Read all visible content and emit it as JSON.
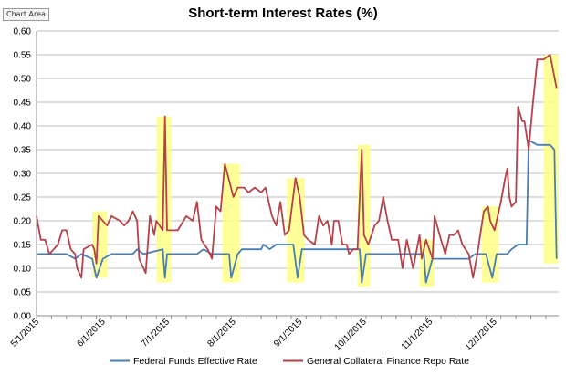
{
  "chart_area_label": "Chart Area",
  "chart_data": {
    "type": "line",
    "title": "Short-term Interest Rates (%)",
    "xlabel": "",
    "ylabel": "",
    "ylim": [
      0,
      0.6
    ],
    "y_ticks": [
      "0.00",
      "0.05",
      "0.10",
      "0.15",
      "0.20",
      "0.25",
      "0.30",
      "0.35",
      "0.40",
      "0.45",
      "0.50",
      "0.55",
      "0.60"
    ],
    "x_ticks": [
      "5/1/2015",
      "6/1/2015",
      "7/1/2015",
      "8/1/2015",
      "9/1/2015",
      "10/1/2015",
      "11/1/2015",
      "12/1/2015"
    ],
    "x_start": "2015-05-01",
    "x_end": "2015-12-31",
    "grid": true,
    "legend_position": "bottom",
    "highlight_color": "#ffff88",
    "highlights": [
      {
        "start": "2015-05-27",
        "end": "2015-06-03",
        "low": 0.08,
        "high": 0.22
      },
      {
        "start": "2015-06-26",
        "end": "2015-07-03",
        "low": 0.07,
        "high": 0.42
      },
      {
        "start": "2015-07-27",
        "end": "2015-08-04",
        "low": 0.07,
        "high": 0.32
      },
      {
        "start": "2015-08-26",
        "end": "2015-09-03",
        "low": 0.07,
        "high": 0.29
      },
      {
        "start": "2015-09-28",
        "end": "2015-10-04",
        "low": 0.06,
        "high": 0.36
      },
      {
        "start": "2015-10-27",
        "end": "2015-11-03",
        "low": 0.06,
        "high": 0.16
      },
      {
        "start": "2015-11-25",
        "end": "2015-12-03",
        "low": 0.07,
        "high": 0.23
      },
      {
        "start": "2015-12-24",
        "end": "2015-12-31",
        "low": 0.11,
        "high": 0.55
      }
    ],
    "series": [
      {
        "name": "Federal Funds Effective Rate",
        "color": "#4a7eb3",
        "points": [
          [
            "2015-05-01",
            0.13
          ],
          [
            "2015-05-15",
            0.13
          ],
          [
            "2015-05-19",
            0.12
          ],
          [
            "2015-05-22",
            0.13
          ],
          [
            "2015-05-27",
            0.12
          ],
          [
            "2015-05-29",
            0.08
          ],
          [
            "2015-06-01",
            0.12
          ],
          [
            "2015-06-05",
            0.13
          ],
          [
            "2015-06-15",
            0.13
          ],
          [
            "2015-06-17",
            0.14
          ],
          [
            "2015-06-20",
            0.13
          ],
          [
            "2015-06-29",
            0.14
          ],
          [
            "2015-06-30",
            0.08
          ],
          [
            "2015-07-01",
            0.13
          ],
          [
            "2015-07-15",
            0.13
          ],
          [
            "2015-07-18",
            0.14
          ],
          [
            "2015-07-22",
            0.13
          ],
          [
            "2015-07-30",
            0.13
          ],
          [
            "2015-07-31",
            0.08
          ],
          [
            "2015-08-03",
            0.13
          ],
          [
            "2015-08-05",
            0.14
          ],
          [
            "2015-08-14",
            0.14
          ],
          [
            "2015-08-15",
            0.15
          ],
          [
            "2015-08-18",
            0.14
          ],
          [
            "2015-08-21",
            0.15
          ],
          [
            "2015-08-29",
            0.15
          ],
          [
            "2015-08-31",
            0.08
          ],
          [
            "2015-09-02",
            0.14
          ],
          [
            "2015-09-15",
            0.14
          ],
          [
            "2015-09-29",
            0.14
          ],
          [
            "2015-09-30",
            0.07
          ],
          [
            "2015-10-02",
            0.13
          ],
          [
            "2015-10-15",
            0.13
          ],
          [
            "2015-10-29",
            0.13
          ],
          [
            "2015-10-30",
            0.07
          ],
          [
            "2015-11-02",
            0.12
          ],
          [
            "2015-11-16",
            0.12
          ],
          [
            "2015-11-19",
            0.12
          ],
          [
            "2015-11-22",
            0.13
          ],
          [
            "2015-11-27",
            0.13
          ],
          [
            "2015-11-30",
            0.08
          ],
          [
            "2015-12-02",
            0.13
          ],
          [
            "2015-12-07",
            0.13
          ],
          [
            "2015-12-09",
            0.14
          ],
          [
            "2015-12-12",
            0.15
          ],
          [
            "2015-12-14",
            0.15
          ],
          [
            "2015-12-16",
            0.15
          ],
          [
            "2015-12-17",
            0.37
          ],
          [
            "2015-12-21",
            0.36
          ],
          [
            "2015-12-23",
            0.36
          ],
          [
            "2015-12-27",
            0.36
          ],
          [
            "2015-12-29",
            0.35
          ],
          [
            "2015-12-30",
            0.12
          ]
        ]
      },
      {
        "name": "General Collateral Finance Repo Rate",
        "color": "#b5424a",
        "points": [
          [
            "2015-05-01",
            0.21
          ],
          [
            "2015-05-03",
            0.16
          ],
          [
            "2015-05-05",
            0.16
          ],
          [
            "2015-05-07",
            0.13
          ],
          [
            "2015-05-09",
            0.14
          ],
          [
            "2015-05-11",
            0.15
          ],
          [
            "2015-05-13",
            0.18
          ],
          [
            "2015-05-15",
            0.18
          ],
          [
            "2015-05-17",
            0.14
          ],
          [
            "2015-05-19",
            0.13
          ],
          [
            "2015-05-20",
            0.1
          ],
          [
            "2015-05-22",
            0.08
          ],
          [
            "2015-05-23",
            0.14
          ],
          [
            "2015-05-27",
            0.15
          ],
          [
            "2015-05-28",
            0.14
          ],
          [
            "2015-05-29",
            0.11
          ],
          [
            "2015-05-30",
            0.21
          ],
          [
            "2015-06-03",
            0.19
          ],
          [
            "2015-06-05",
            0.21
          ],
          [
            "2015-06-09",
            0.2
          ],
          [
            "2015-06-11",
            0.19
          ],
          [
            "2015-06-13",
            0.2
          ],
          [
            "2015-06-15",
            0.22
          ],
          [
            "2015-06-17",
            0.2
          ],
          [
            "2015-06-18",
            0.12
          ],
          [
            "2015-06-21",
            0.09
          ],
          [
            "2015-06-23",
            0.21
          ],
          [
            "2015-06-25",
            0.17
          ],
          [
            "2015-06-26",
            0.2
          ],
          [
            "2015-06-29",
            0.18
          ],
          [
            "2015-06-30",
            0.42
          ],
          [
            "2015-07-01",
            0.18
          ],
          [
            "2015-07-06",
            0.18
          ],
          [
            "2015-07-10",
            0.21
          ],
          [
            "2015-07-13",
            0.2
          ],
          [
            "2015-07-15",
            0.24
          ],
          [
            "2015-07-17",
            0.16
          ],
          [
            "2015-07-20",
            0.14
          ],
          [
            "2015-07-22",
            0.12
          ],
          [
            "2015-07-24",
            0.23
          ],
          [
            "2015-07-26",
            0.22
          ],
          [
            "2015-07-28",
            0.32
          ],
          [
            "2015-08-01",
            0.25
          ],
          [
            "2015-08-03",
            0.27
          ],
          [
            "2015-08-06",
            0.27
          ],
          [
            "2015-08-08",
            0.26
          ],
          [
            "2015-08-11",
            0.27
          ],
          [
            "2015-08-14",
            0.26
          ],
          [
            "2015-08-16",
            0.27
          ],
          [
            "2015-08-19",
            0.21
          ],
          [
            "2015-08-21",
            0.19
          ],
          [
            "2015-08-23",
            0.24
          ],
          [
            "2015-08-25",
            0.17
          ],
          [
            "2015-08-27",
            0.18
          ],
          [
            "2015-08-30",
            0.29
          ],
          [
            "2015-09-01",
            0.25
          ],
          [
            "2015-09-03",
            0.17
          ],
          [
            "2015-09-05",
            0.16
          ],
          [
            "2015-09-08",
            0.15
          ],
          [
            "2015-09-10",
            0.21
          ],
          [
            "2015-09-12",
            0.19
          ],
          [
            "2015-09-14",
            0.2
          ],
          [
            "2015-09-16",
            0.15
          ],
          [
            "2015-09-17",
            0.2
          ],
          [
            "2015-09-19",
            0.2
          ],
          [
            "2015-09-21",
            0.15
          ],
          [
            "2015-09-23",
            0.15
          ],
          [
            "2015-09-24",
            0.13
          ],
          [
            "2015-09-26",
            0.14
          ],
          [
            "2015-09-28",
            0.14
          ],
          [
            "2015-09-30",
            0.35
          ],
          [
            "2015-10-01",
            0.17
          ],
          [
            "2015-10-03",
            0.15
          ],
          [
            "2015-10-06",
            0.19
          ],
          [
            "2015-10-08",
            0.2
          ],
          [
            "2015-10-10",
            0.25
          ],
          [
            "2015-10-12",
            0.2
          ],
          [
            "2015-10-14",
            0.16
          ],
          [
            "2015-10-17",
            0.16
          ],
          [
            "2015-10-19",
            0.1
          ],
          [
            "2015-10-21",
            0.16
          ],
          [
            "2015-10-24",
            0.1
          ],
          [
            "2015-10-27",
            0.17
          ],
          [
            "2015-10-28",
            0.12
          ],
          [
            "2015-10-30",
            0.16
          ],
          [
            "2015-11-02",
            0.12
          ],
          [
            "2015-11-03",
            0.21
          ],
          [
            "2015-11-06",
            0.16
          ],
          [
            "2015-11-08",
            0.13
          ],
          [
            "2015-11-10",
            0.17
          ],
          [
            "2015-11-12",
            0.17
          ],
          [
            "2015-11-14",
            0.18
          ],
          [
            "2015-11-16",
            0.15
          ],
          [
            "2015-11-19",
            0.13
          ],
          [
            "2015-11-21",
            0.08
          ],
          [
            "2015-11-23",
            0.13
          ],
          [
            "2015-11-26",
            0.22
          ],
          [
            "2015-11-28",
            0.23
          ],
          [
            "2015-11-29",
            0.2
          ],
          [
            "2015-12-01",
            0.18
          ],
          [
            "2015-12-04",
            0.24
          ],
          [
            "2015-12-06",
            0.29
          ],
          [
            "2015-12-07",
            0.31
          ],
          [
            "2015-12-08",
            0.25
          ],
          [
            "2015-12-09",
            0.23
          ],
          [
            "2015-12-11",
            0.24
          ],
          [
            "2015-12-12",
            0.44
          ],
          [
            "2015-12-14",
            0.41
          ],
          [
            "2015-12-15",
            0.41
          ],
          [
            "2015-12-17",
            0.35
          ],
          [
            "2015-12-19",
            0.45
          ],
          [
            "2015-12-21",
            0.54
          ],
          [
            "2015-12-24",
            0.54
          ],
          [
            "2015-12-27",
            0.55
          ],
          [
            "2015-12-30",
            0.48
          ]
        ]
      }
    ]
  }
}
